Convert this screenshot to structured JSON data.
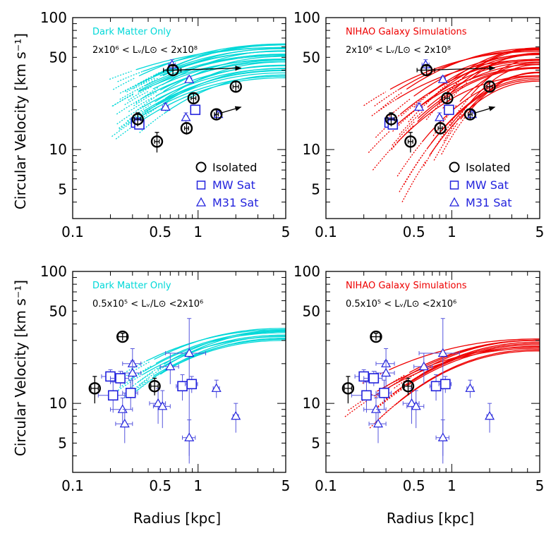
{
  "colors": {
    "dmo": "#00d8d8",
    "nihao": "#ee0000",
    "mw": "#2222dd",
    "m31": "#2222dd",
    "iso": "#000000",
    "errbar": "#5555dd"
  },
  "axes": {
    "ylabel": "Circular Velocity [km s⁻¹]",
    "xlabel": "Radius [kpc]",
    "xticks": [
      "0.1",
      "0.5",
      "1",
      "5"
    ],
    "yticks": [
      "100",
      "50",
      "10",
      "5"
    ],
    "xlim": [
      0.1,
      5
    ],
    "ylim": [
      3,
      100
    ],
    "xscale": "log",
    "yscale": "log"
  },
  "legend": {
    "iso": "Isolated",
    "mw": "MW Sat",
    "m31": "M31 Sat"
  },
  "chart_data": [
    {
      "type": "line",
      "panel": "top-left",
      "title": "Dark Matter Only",
      "range_label": "2x10⁶ < Lᵥ/L⊙ < 2x10⁸",
      "model": "dmo",
      "curves": {
        "n": 30,
        "r_start": [
          0.18,
          0.35
        ],
        "r_end": 5,
        "v_start": [
          12,
          32
        ],
        "v_end": [
          35,
          64
        ]
      },
      "isolated": [
        {
          "r": 0.33,
          "v": 17,
          "xerr": 0.02,
          "yerr": 2
        },
        {
          "r": 0.47,
          "v": 11.5,
          "xerr": 0.02,
          "yerr": 2
        },
        {
          "r": 0.63,
          "v": 40,
          "xerr": 0.1,
          "yerr": 3
        },
        {
          "r": 0.81,
          "v": 14.5,
          "xerr": 0.03,
          "yerr": 1.5
        },
        {
          "r": 0.92,
          "v": 24.5,
          "xerr": 0.04,
          "yerr": 2
        },
        {
          "r": 1.4,
          "v": 18.5,
          "xerr": 0.05,
          "yerr": 1.5
        },
        {
          "r": 2.0,
          "v": 30,
          "xerr": 0.1,
          "yerr": 3
        }
      ],
      "mw": [
        {
          "r": 0.32,
          "v": 16,
          "xerr": 0.02,
          "yerr": 1
        },
        {
          "r": 0.34,
          "v": 15.5,
          "xerr": 0.02,
          "yerr": 1
        },
        {
          "r": 0.95,
          "v": 20,
          "xerr": 0.03,
          "yerr": 1
        }
      ],
      "m31": [
        {
          "r": 0.55,
          "v": 21,
          "xerr": 0.03,
          "yerr": 1.5
        },
        {
          "r": 0.62,
          "v": 44,
          "xerr": 0.04,
          "yerr": 4
        },
        {
          "r": 0.8,
          "v": 17.5,
          "xerr": 0.03,
          "yerr": 1.5
        },
        {
          "r": 0.85,
          "v": 34,
          "xerr": 0.04,
          "yerr": 2
        },
        {
          "r": 1.45,
          "v": 18.5,
          "xerr": 0.05,
          "yerr": 1
        }
      ],
      "arrows": [
        {
          "r0": 0.63,
          "v0": 40,
          "r1": 2.2,
          "v1": 41.5
        },
        {
          "r0": 1.4,
          "v0": 18.5,
          "r1": 2.2,
          "v1": 21
        }
      ],
      "legend_visible": true
    },
    {
      "type": "line",
      "panel": "top-right",
      "title": "NIHAO Galaxy Simulations",
      "range_label": "2x10⁶ < Lᵥ/L⊙ < 2x10⁸",
      "model": "nihao",
      "curves": {
        "n": 30,
        "r_start": [
          0.18,
          0.9
        ],
        "r_end": 5,
        "v_start": [
          4,
          24
        ],
        "v_end": [
          33,
          60
        ]
      },
      "isolated": [
        {
          "r": 0.33,
          "v": 17,
          "xerr": 0.02,
          "yerr": 2
        },
        {
          "r": 0.47,
          "v": 11.5,
          "xerr": 0.02,
          "yerr": 2
        },
        {
          "r": 0.63,
          "v": 40,
          "xerr": 0.1,
          "yerr": 3
        },
        {
          "r": 0.81,
          "v": 14.5,
          "xerr": 0.03,
          "yerr": 1.5
        },
        {
          "r": 0.92,
          "v": 24.5,
          "xerr": 0.04,
          "yerr": 2
        },
        {
          "r": 1.4,
          "v": 18.5,
          "xerr": 0.05,
          "yerr": 1.5
        },
        {
          "r": 2.0,
          "v": 30,
          "xerr": 0.1,
          "yerr": 3
        }
      ],
      "mw": [
        {
          "r": 0.32,
          "v": 16,
          "xerr": 0.02,
          "yerr": 1
        },
        {
          "r": 0.34,
          "v": 15.5,
          "xerr": 0.02,
          "yerr": 1
        },
        {
          "r": 0.95,
          "v": 20,
          "xerr": 0.03,
          "yerr": 1
        }
      ],
      "m31": [
        {
          "r": 0.55,
          "v": 21,
          "xerr": 0.03,
          "yerr": 1.5
        },
        {
          "r": 0.62,
          "v": 44,
          "xerr": 0.04,
          "yerr": 4
        },
        {
          "r": 0.8,
          "v": 17.5,
          "xerr": 0.03,
          "yerr": 1.5
        },
        {
          "r": 0.85,
          "v": 34,
          "xerr": 0.04,
          "yerr": 2
        },
        {
          "r": 1.45,
          "v": 18.5,
          "xerr": 0.05,
          "yerr": 1
        }
      ],
      "arrows": [
        {
          "r0": 0.63,
          "v0": 40,
          "r1": 2.2,
          "v1": 41.5
        },
        {
          "r0": 1.4,
          "v0": 18.5,
          "r1": 2.2,
          "v1": 21
        }
      ],
      "legend_visible": true
    },
    {
      "type": "line",
      "panel": "bottom-left",
      "title": "Dark Matter Only",
      "range_label": "0.5x10⁵ < Lᵥ/L⊙ <2x10⁶",
      "model": "dmo",
      "curves": {
        "n": 12,
        "r_start": [
          0.2,
          0.35
        ],
        "r_end": 5,
        "v_start": [
          11,
          16
        ],
        "v_end": [
          30,
          37
        ]
      },
      "isolated": [
        {
          "r": 0.15,
          "v": 13,
          "xerr": 0.01,
          "yerr": 3
        },
        {
          "r": 0.25,
          "v": 32,
          "xerr": 0.02,
          "yerr": 2
        },
        {
          "r": 0.45,
          "v": 13.5,
          "xerr": 0.03,
          "yerr": 2
        }
      ],
      "mw": [
        {
          "r": 0.2,
          "v": 16,
          "xerr": 0.03,
          "yerr": 2
        },
        {
          "r": 0.21,
          "v": 11.5,
          "xerr": 0.05,
          "yerr": 3
        },
        {
          "r": 0.24,
          "v": 15.5,
          "xerr": 0.04,
          "yerr": 2
        },
        {
          "r": 0.29,
          "v": 12,
          "xerr": 0.04,
          "yerr": 3
        },
        {
          "r": 0.75,
          "v": 13.5,
          "xerr": 0.08,
          "yerr": 3
        },
        {
          "r": 0.89,
          "v": 14,
          "xerr": 0.1,
          "yerr": 2
        }
      ],
      "m31": [
        {
          "r": 0.25,
          "v": 9,
          "xerr": 0.05,
          "yerr": 2
        },
        {
          "r": 0.26,
          "v": 7,
          "xerr": 0.04,
          "yerr": 2
        },
        {
          "r": 0.3,
          "v": 20,
          "xerr": 0.05,
          "yerr": 6
        },
        {
          "r": 0.3,
          "v": 17,
          "xerr": 0.05,
          "yerr": 4
        },
        {
          "r": 0.48,
          "v": 10,
          "xerr": 0.07,
          "yerr": 3
        },
        {
          "r": 0.52,
          "v": 9.5,
          "xerr": 0.08,
          "yerr": 3
        },
        {
          "r": 0.6,
          "v": 19,
          "xerr": 0.1,
          "yerr": 5
        },
        {
          "r": 0.85,
          "v": 24,
          "xerr": 0.3,
          "yerr": 20
        },
        {
          "r": 0.85,
          "v": 5.5,
          "xerr": 0.1,
          "yerr": 2
        },
        {
          "r": 1.4,
          "v": 13,
          "xerr": 0.08,
          "yerr": 2
        },
        {
          "r": 2.0,
          "v": 8,
          "xerr": 0.1,
          "yerr": 2
        }
      ],
      "arrows": [],
      "legend_visible": false
    },
    {
      "type": "line",
      "panel": "bottom-right",
      "title": "NIHAO Galaxy Simulations",
      "range_label": "0.5x10⁵ < Lᵥ/L⊙ <2x10⁶",
      "model": "nihao",
      "curves": {
        "n": 12,
        "r_start": [
          0.12,
          0.35
        ],
        "r_end": 5,
        "v_start": [
          6.5,
          14
        ],
        "v_end": [
          25,
          31
        ]
      },
      "isolated": [
        {
          "r": 0.15,
          "v": 13,
          "xerr": 0.01,
          "yerr": 3
        },
        {
          "r": 0.25,
          "v": 32,
          "xerr": 0.02,
          "yerr": 2
        },
        {
          "r": 0.45,
          "v": 13.5,
          "xerr": 0.03,
          "yerr": 2
        }
      ],
      "mw": [
        {
          "r": 0.2,
          "v": 16,
          "xerr": 0.03,
          "yerr": 2
        },
        {
          "r": 0.21,
          "v": 11.5,
          "xerr": 0.05,
          "yerr": 3
        },
        {
          "r": 0.24,
          "v": 15.5,
          "xerr": 0.04,
          "yerr": 2
        },
        {
          "r": 0.29,
          "v": 12,
          "xerr": 0.04,
          "yerr": 3
        },
        {
          "r": 0.75,
          "v": 13.5,
          "xerr": 0.08,
          "yerr": 3
        },
        {
          "r": 0.89,
          "v": 14,
          "xerr": 0.1,
          "yerr": 2
        }
      ],
      "m31": [
        {
          "r": 0.25,
          "v": 9,
          "xerr": 0.05,
          "yerr": 2
        },
        {
          "r": 0.26,
          "v": 7,
          "xerr": 0.04,
          "yerr": 2
        },
        {
          "r": 0.3,
          "v": 20,
          "xerr": 0.05,
          "yerr": 6
        },
        {
          "r": 0.3,
          "v": 17,
          "xerr": 0.05,
          "yerr": 4
        },
        {
          "r": 0.48,
          "v": 10,
          "xerr": 0.07,
          "yerr": 3
        },
        {
          "r": 0.52,
          "v": 9.5,
          "xerr": 0.08,
          "yerr": 3
        },
        {
          "r": 0.6,
          "v": 19,
          "xerr": 0.1,
          "yerr": 5
        },
        {
          "r": 0.85,
          "v": 24,
          "xerr": 0.3,
          "yerr": 20
        },
        {
          "r": 0.85,
          "v": 5.5,
          "xerr": 0.1,
          "yerr": 2
        },
        {
          "r": 1.4,
          "v": 13,
          "xerr": 0.08,
          "yerr": 2
        },
        {
          "r": 2.0,
          "v": 8,
          "xerr": 0.1,
          "yerr": 2
        }
      ],
      "arrows": [],
      "legend_visible": false
    }
  ]
}
